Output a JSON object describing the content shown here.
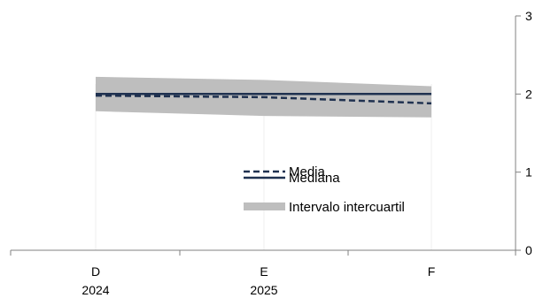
{
  "chart_data": {
    "type": "line",
    "categories": [
      "D",
      "E",
      "F"
    ],
    "category_sublabels": [
      "2024",
      "2025",
      ""
    ],
    "ylim": [
      0,
      3
    ],
    "yticks": [
      0,
      1,
      2,
      3
    ],
    "y_axis_side": "right",
    "series": [
      {
        "name": "Media",
        "style": "dashed",
        "color": "#1f3150",
        "values": [
          1.98,
          1.96,
          1.88
        ]
      },
      {
        "name": "Mediana",
        "style": "solid",
        "color": "#1f3150",
        "values": [
          2.0,
          2.0,
          2.0
        ]
      }
    ],
    "band": {
      "name": "Intervalo intercuartil",
      "color": "#bebebe",
      "lower": [
        1.78,
        1.72,
        1.7
      ],
      "upper": [
        2.22,
        2.18,
        2.1
      ]
    },
    "legend_placement": "center"
  }
}
